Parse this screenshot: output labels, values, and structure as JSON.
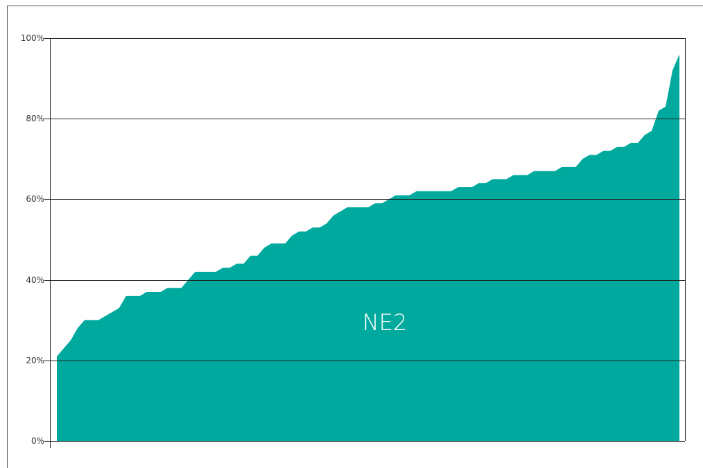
{
  "chart_data": {
    "type": "area",
    "categories": [
      null,
      null,
      null,
      null,
      null,
      null,
      null,
      null,
      null,
      null,
      null,
      null,
      null,
      null,
      null,
      null,
      null,
      null,
      null,
      null,
      null,
      null,
      null,
      null,
      null,
      null,
      null,
      null,
      null,
      null,
      null,
      null,
      null,
      null,
      null,
      null,
      null,
      null,
      null,
      null,
      null,
      null,
      null,
      null,
      null,
      null,
      null,
      null,
      null,
      null,
      null,
      null,
      null,
      null,
      null,
      null,
      null,
      null,
      null,
      null,
      null,
      null,
      null,
      null,
      null,
      null,
      null,
      null,
      null,
      null,
      null,
      null,
      null,
      null,
      null,
      null,
      null,
      null,
      null,
      null,
      null,
      null,
      null,
      null,
      null,
      null,
      null,
      null,
      null,
      null,
      null
    ],
    "series": [
      {
        "name": "NE2",
        "color": "#00a99d",
        "values": [
          21,
          23,
          25,
          28,
          30,
          30,
          30,
          31,
          32,
          33,
          36,
          36,
          36,
          37,
          37,
          37,
          38,
          38,
          38,
          40,
          42,
          42,
          42,
          42,
          43,
          43,
          44,
          44,
          46,
          46,
          48,
          49,
          49,
          49,
          51,
          52,
          52,
          53,
          53,
          54,
          56,
          57,
          58,
          58,
          58,
          58,
          59,
          59,
          60,
          61,
          61,
          61,
          62,
          62,
          62,
          62,
          62,
          62,
          63,
          63,
          63,
          64,
          64,
          65,
          65,
          65,
          66,
          66,
          66,
          67,
          67,
          67,
          67,
          68,
          68,
          68,
          70,
          71,
          71,
          72,
          72,
          73,
          73,
          74,
          74,
          76,
          77,
          82,
          83,
          92,
          96
        ]
      }
    ],
    "ylim": [
      0,
      100
    ],
    "yticks": [
      {
        "value": 0,
        "label": "0%"
      },
      {
        "value": 20,
        "label": "20%"
      },
      {
        "value": 40,
        "label": "40%"
      },
      {
        "value": 60,
        "label": "60%"
      },
      {
        "value": 80,
        "label": "80%"
      },
      {
        "value": 100,
        "label": "100%"
      }
    ],
    "grid": true
  }
}
